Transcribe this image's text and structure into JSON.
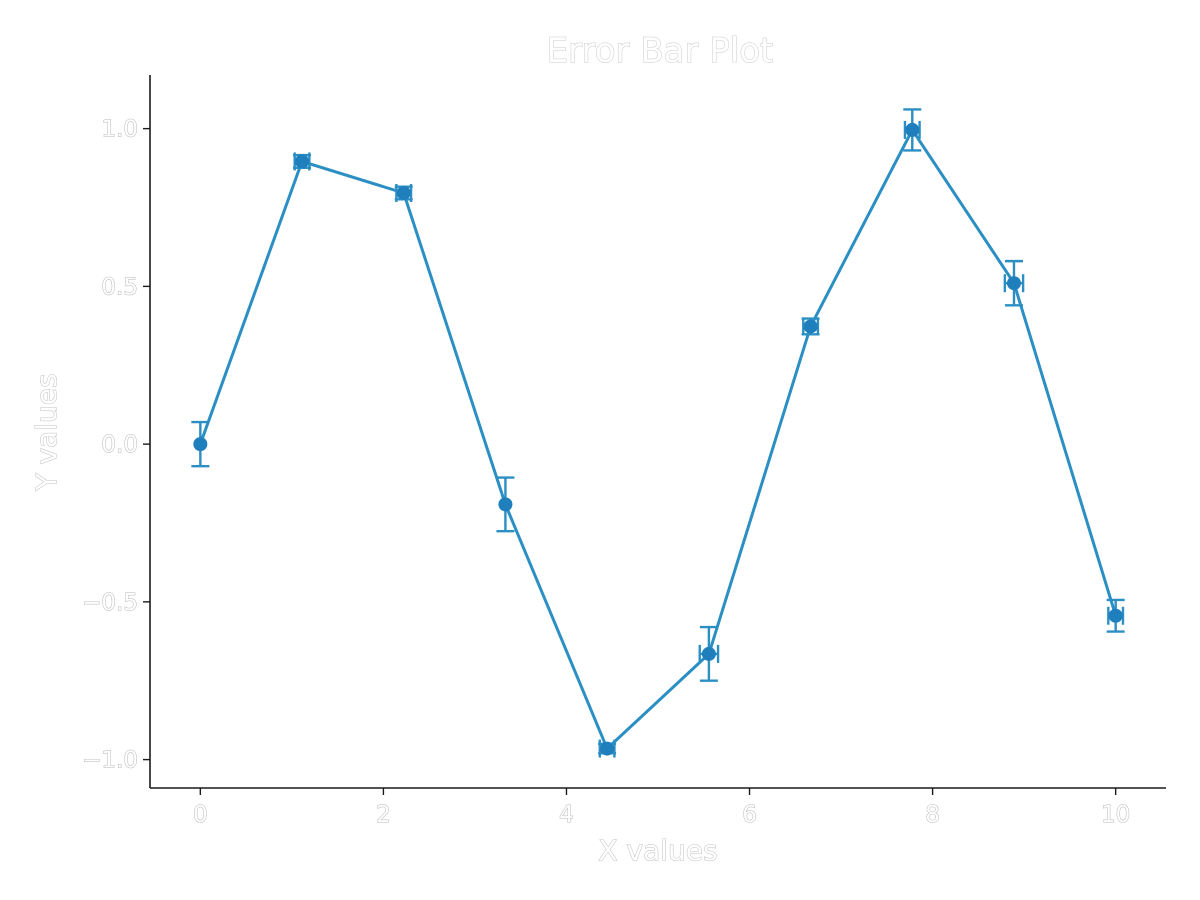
{
  "chart_data": {
    "type": "line",
    "title": "Error Bar Plot",
    "xlabel": "X values",
    "ylabel": "Y values",
    "xlim": [
      -0.55,
      10.55
    ],
    "ylim": [
      -1.09,
      1.17
    ],
    "xticks": [
      0,
      2,
      4,
      6,
      8,
      10
    ],
    "xtick_labels": [
      "0",
      "2",
      "4",
      "6",
      "8",
      "10"
    ],
    "yticks": [
      -1.0,
      -0.5,
      0.0,
      0.5,
      1.0
    ],
    "ytick_labels": [
      "−1.0",
      "−0.5",
      "0.0",
      "0.5",
      "1.0"
    ],
    "grid": false,
    "color": "#2b8fc4",
    "series": [
      {
        "x": [
          0.0,
          1.111,
          2.222,
          3.333,
          4.444,
          5.556,
          6.667,
          7.778,
          8.889,
          10.0
        ],
        "y": [
          0.0,
          0.896,
          0.796,
          -0.191,
          -0.965,
          -0.665,
          0.373,
          0.996,
          0.51,
          -0.544
        ],
        "yerr": [
          0.07,
          0.02,
          0.02,
          0.085,
          0.015,
          0.085,
          0.025,
          0.065,
          0.07,
          0.05
        ],
        "xerr": [
          0.0,
          0.08,
          0.08,
          0.0,
          0.08,
          0.1,
          0.08,
          0.08,
          0.1,
          0.08
        ]
      }
    ]
  }
}
